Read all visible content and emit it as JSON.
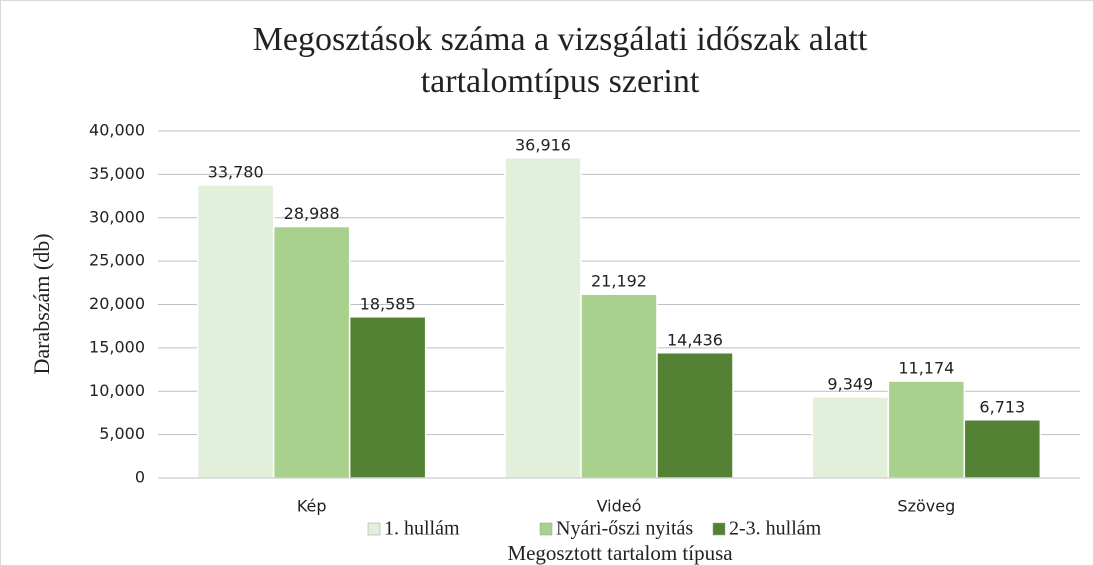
{
  "chart_data": {
    "type": "bar",
    "title": [
      "Megosztások száma a vizsgálati időszak alatt",
      "tartalomtípus szerint"
    ],
    "y_label": "Darabszám (db)",
    "x_label": "Megosztott tartalom típusa",
    "categories": [
      "Kép",
      "Videó",
      "Szöveg"
    ],
    "series": [
      {
        "name": "1. hullám",
        "color": "#e2efda",
        "values": [
          33780,
          36916,
          9349
        ],
        "value_labels": [
          "33,780",
          "36,916",
          "9,349"
        ]
      },
      {
        "name": "Nyári-őszi nyitás",
        "color": "#a9d18e",
        "values": [
          28988,
          21192,
          11174
        ],
        "value_labels": [
          "28,988",
          "21,192",
          "11,174"
        ]
      },
      {
        "name": "2-3. hullám",
        "color": "#548235",
        "values": [
          18585,
          14436,
          6713
        ],
        "value_labels": [
          "18,585",
          "14,436",
          "6,713"
        ]
      }
    ],
    "ylim": [
      0,
      40000
    ],
    "yticks": [
      0,
      {
        "value": 5000,
        "label": "5,000"
      },
      {
        "value": 10000,
        "label": "10,000"
      },
      {
        "value": 15000,
        "label": "15,000"
      },
      {
        "value": 20000,
        "label": "20,000"
      },
      {
        "value": 25000,
        "label": "25,000"
      },
      {
        "value": 30000,
        "label": "30,000"
      },
      {
        "value": 35000,
        "label": "35,000"
      },
      {
        "value": 40000,
        "label": "40,000"
      }
    ],
    "grid": true,
    "legend": "bottom"
  }
}
